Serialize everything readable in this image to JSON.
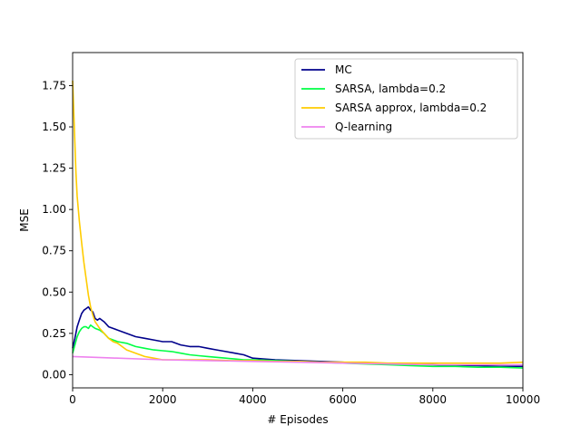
{
  "chart_data": {
    "type": "line",
    "xlabel": "# Episodes",
    "ylabel": "MSE",
    "xlim": [
      0,
      10000
    ],
    "ylim": [
      -0.08,
      1.95
    ],
    "xticks": [
      0,
      2000,
      4000,
      6000,
      8000,
      10000
    ],
    "yticks": [
      0.0,
      0.25,
      0.5,
      0.75,
      1.0,
      1.25,
      1.5,
      1.75
    ],
    "xtick_labels": [
      "0",
      "2000",
      "4000",
      "6000",
      "8000",
      "10000"
    ],
    "ytick_labels": [
      "0.00",
      "0.25",
      "0.50",
      "0.75",
      "1.00",
      "1.25",
      "1.50",
      "1.75"
    ],
    "grid": false,
    "legend_position": "top-right",
    "series": [
      {
        "name": "MC",
        "color": "#00008b",
        "x": [
          0,
          50,
          100,
          150,
          200,
          250,
          300,
          350,
          400,
          450,
          500,
          550,
          600,
          700,
          800,
          900,
          1000,
          1200,
          1400,
          1600,
          1800,
          2000,
          2200,
          2400,
          2600,
          2800,
          3000,
          3200,
          3400,
          3600,
          3800,
          4000,
          4500,
          5000,
          5500,
          6000,
          6500,
          7000,
          7500,
          8000,
          8500,
          9000,
          9500,
          10000
        ],
        "y": [
          0.16,
          0.22,
          0.29,
          0.33,
          0.37,
          0.39,
          0.4,
          0.41,
          0.39,
          0.38,
          0.34,
          0.33,
          0.34,
          0.32,
          0.29,
          0.28,
          0.27,
          0.25,
          0.23,
          0.22,
          0.21,
          0.2,
          0.2,
          0.18,
          0.17,
          0.17,
          0.16,
          0.15,
          0.14,
          0.13,
          0.12,
          0.1,
          0.09,
          0.085,
          0.08,
          0.075,
          0.07,
          0.065,
          0.06,
          0.06,
          0.055,
          0.055,
          0.05,
          0.05
        ]
      },
      {
        "name": "SARSA, lambda=0.2",
        "color": "#00ff44",
        "x": [
          0,
          50,
          100,
          150,
          200,
          250,
          300,
          350,
          400,
          450,
          500,
          600,
          700,
          800,
          900,
          1000,
          1200,
          1400,
          1600,
          1800,
          2000,
          2200,
          2400,
          2600,
          2800,
          3000,
          3200,
          3400,
          3600,
          3800,
          4000,
          4500,
          5000,
          5500,
          6000,
          6500,
          7000,
          7500,
          8000,
          8500,
          9000,
          9500,
          10000
        ],
        "y": [
          0.13,
          0.18,
          0.23,
          0.26,
          0.28,
          0.29,
          0.29,
          0.28,
          0.3,
          0.29,
          0.28,
          0.27,
          0.25,
          0.22,
          0.21,
          0.2,
          0.19,
          0.17,
          0.16,
          0.15,
          0.145,
          0.14,
          0.13,
          0.12,
          0.115,
          0.11,
          0.105,
          0.1,
          0.095,
          0.09,
          0.09,
          0.085,
          0.08,
          0.075,
          0.07,
          0.065,
          0.06,
          0.055,
          0.05,
          0.05,
          0.045,
          0.045,
          0.04
        ]
      },
      {
        "name": "SARSA approx, lambda=0.2",
        "color": "#ffcc00",
        "x": [
          0,
          25,
          50,
          75,
          100,
          150,
          200,
          250,
          300,
          350,
          400,
          450,
          500,
          550,
          600,
          700,
          800,
          900,
          1000,
          1200,
          1400,
          1600,
          1800,
          2000,
          2500,
          3000,
          3500,
          4000,
          4500,
          5000,
          5500,
          6000,
          6500,
          7000,
          7500,
          8000,
          8500,
          9000,
          9500,
          10000
        ],
        "y": [
          1.78,
          1.6,
          1.4,
          1.22,
          1.08,
          0.93,
          0.8,
          0.68,
          0.58,
          0.48,
          0.41,
          0.36,
          0.32,
          0.3,
          0.28,
          0.25,
          0.22,
          0.2,
          0.19,
          0.15,
          0.13,
          0.11,
          0.1,
          0.09,
          0.09,
          0.09,
          0.085,
          0.085,
          0.08,
          0.08,
          0.075,
          0.075,
          0.075,
          0.07,
          0.07,
          0.07,
          0.07,
          0.07,
          0.07,
          0.075
        ]
      },
      {
        "name": "Q-learning",
        "color": "#ee82ee",
        "x": [
          0,
          500,
          1000,
          2000,
          3000,
          4000,
          5000,
          6000,
          7000,
          8000,
          9000,
          10000
        ],
        "y": [
          0.11,
          0.105,
          0.1,
          0.09,
          0.085,
          0.08,
          0.075,
          0.07,
          0.065,
          0.06,
          0.06,
          0.06
        ]
      }
    ]
  }
}
